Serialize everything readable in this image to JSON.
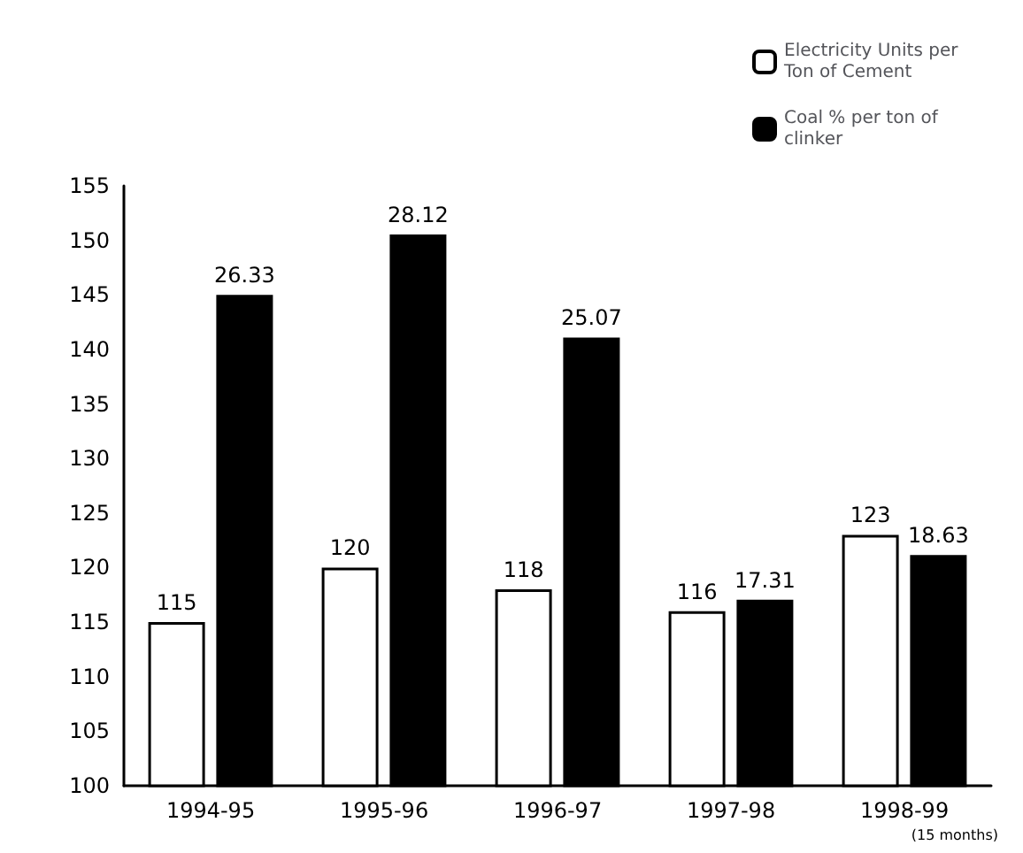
{
  "chart_data": {
    "type": "bar",
    "categories": [
      "1994-95",
      "1995-96",
      "1996-97",
      "1997-98",
      "1998-99"
    ],
    "series": [
      {
        "name": "Electricity Units per Ton of Cement",
        "color": "#ffffff",
        "values": [
          115,
          120,
          118,
          116,
          123
        ]
      },
      {
        "name": "Coal % per ton of clinker",
        "color": "#000000",
        "axis": "y2",
        "values": [
          26.33,
          28.12,
          25.07,
          17.31,
          18.63
        ]
      }
    ],
    "ylim": [
      100,
      155
    ],
    "yticks": [
      100,
      105,
      110,
      115,
      120,
      125,
      130,
      135,
      140,
      145,
      150,
      155
    ],
    "y2lim": [
      11.8,
      29.56
    ],
    "data_labels": true,
    "legend": "top right",
    "grid": false,
    "annotations": [
      "(15 months)"
    ]
  }
}
